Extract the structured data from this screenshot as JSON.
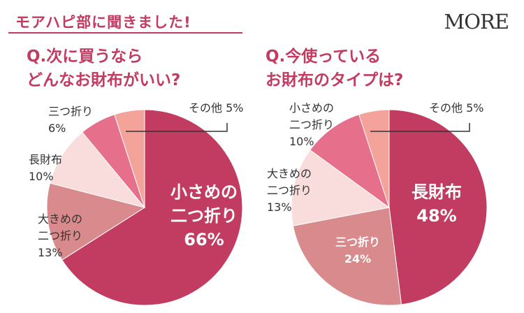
{
  "header": {
    "title": "モアハピ部に聞きました!"
  },
  "logo": "MORE",
  "chart_data": [
    {
      "type": "pie",
      "title_lines": [
        "Q.次に買うなら",
        "どんなお財布がいい?"
      ],
      "slices": [
        {
          "label_lines": [
            "小さめの",
            "二つ折り"
          ],
          "value": 66,
          "value_text": "66%",
          "color": "#c23b61"
        },
        {
          "label_lines": [
            "大きめの",
            "二つ折り"
          ],
          "value": 13,
          "value_text": "13%",
          "color": "#d88a8c"
        },
        {
          "label_lines": [
            "長財布"
          ],
          "value": 10,
          "value_text": "10%",
          "color": "#f9dcdc"
        },
        {
          "label_lines": [
            "三つ折り"
          ],
          "value": 6,
          "value_text": "6%",
          "color": "#e66f8c"
        },
        {
          "label_lines": [
            "その他"
          ],
          "value": 5,
          "value_text": "5%",
          "color": "#f3a39a"
        }
      ]
    },
    {
      "type": "pie",
      "title_lines": [
        "Q.今使っている",
        "お財布のタイプは?"
      ],
      "slices": [
        {
          "label_lines": [
            "長財布"
          ],
          "value": 48,
          "value_text": "48%",
          "color": "#c23b61"
        },
        {
          "label_lines": [
            "三つ折り"
          ],
          "value": 24,
          "value_text": "24%",
          "color": "#d88a8c"
        },
        {
          "label_lines": [
            "大きめの",
            "二つ折り"
          ],
          "value": 13,
          "value_text": "13%",
          "color": "#f9dcdc"
        },
        {
          "label_lines": [
            "小さめの",
            "二つ折り"
          ],
          "value": 10,
          "value_text": "10%",
          "color": "#e66f8c"
        },
        {
          "label_lines": [
            "その他"
          ],
          "value": 5,
          "value_text": "5%",
          "color": "#f3a39a"
        }
      ]
    }
  ]
}
